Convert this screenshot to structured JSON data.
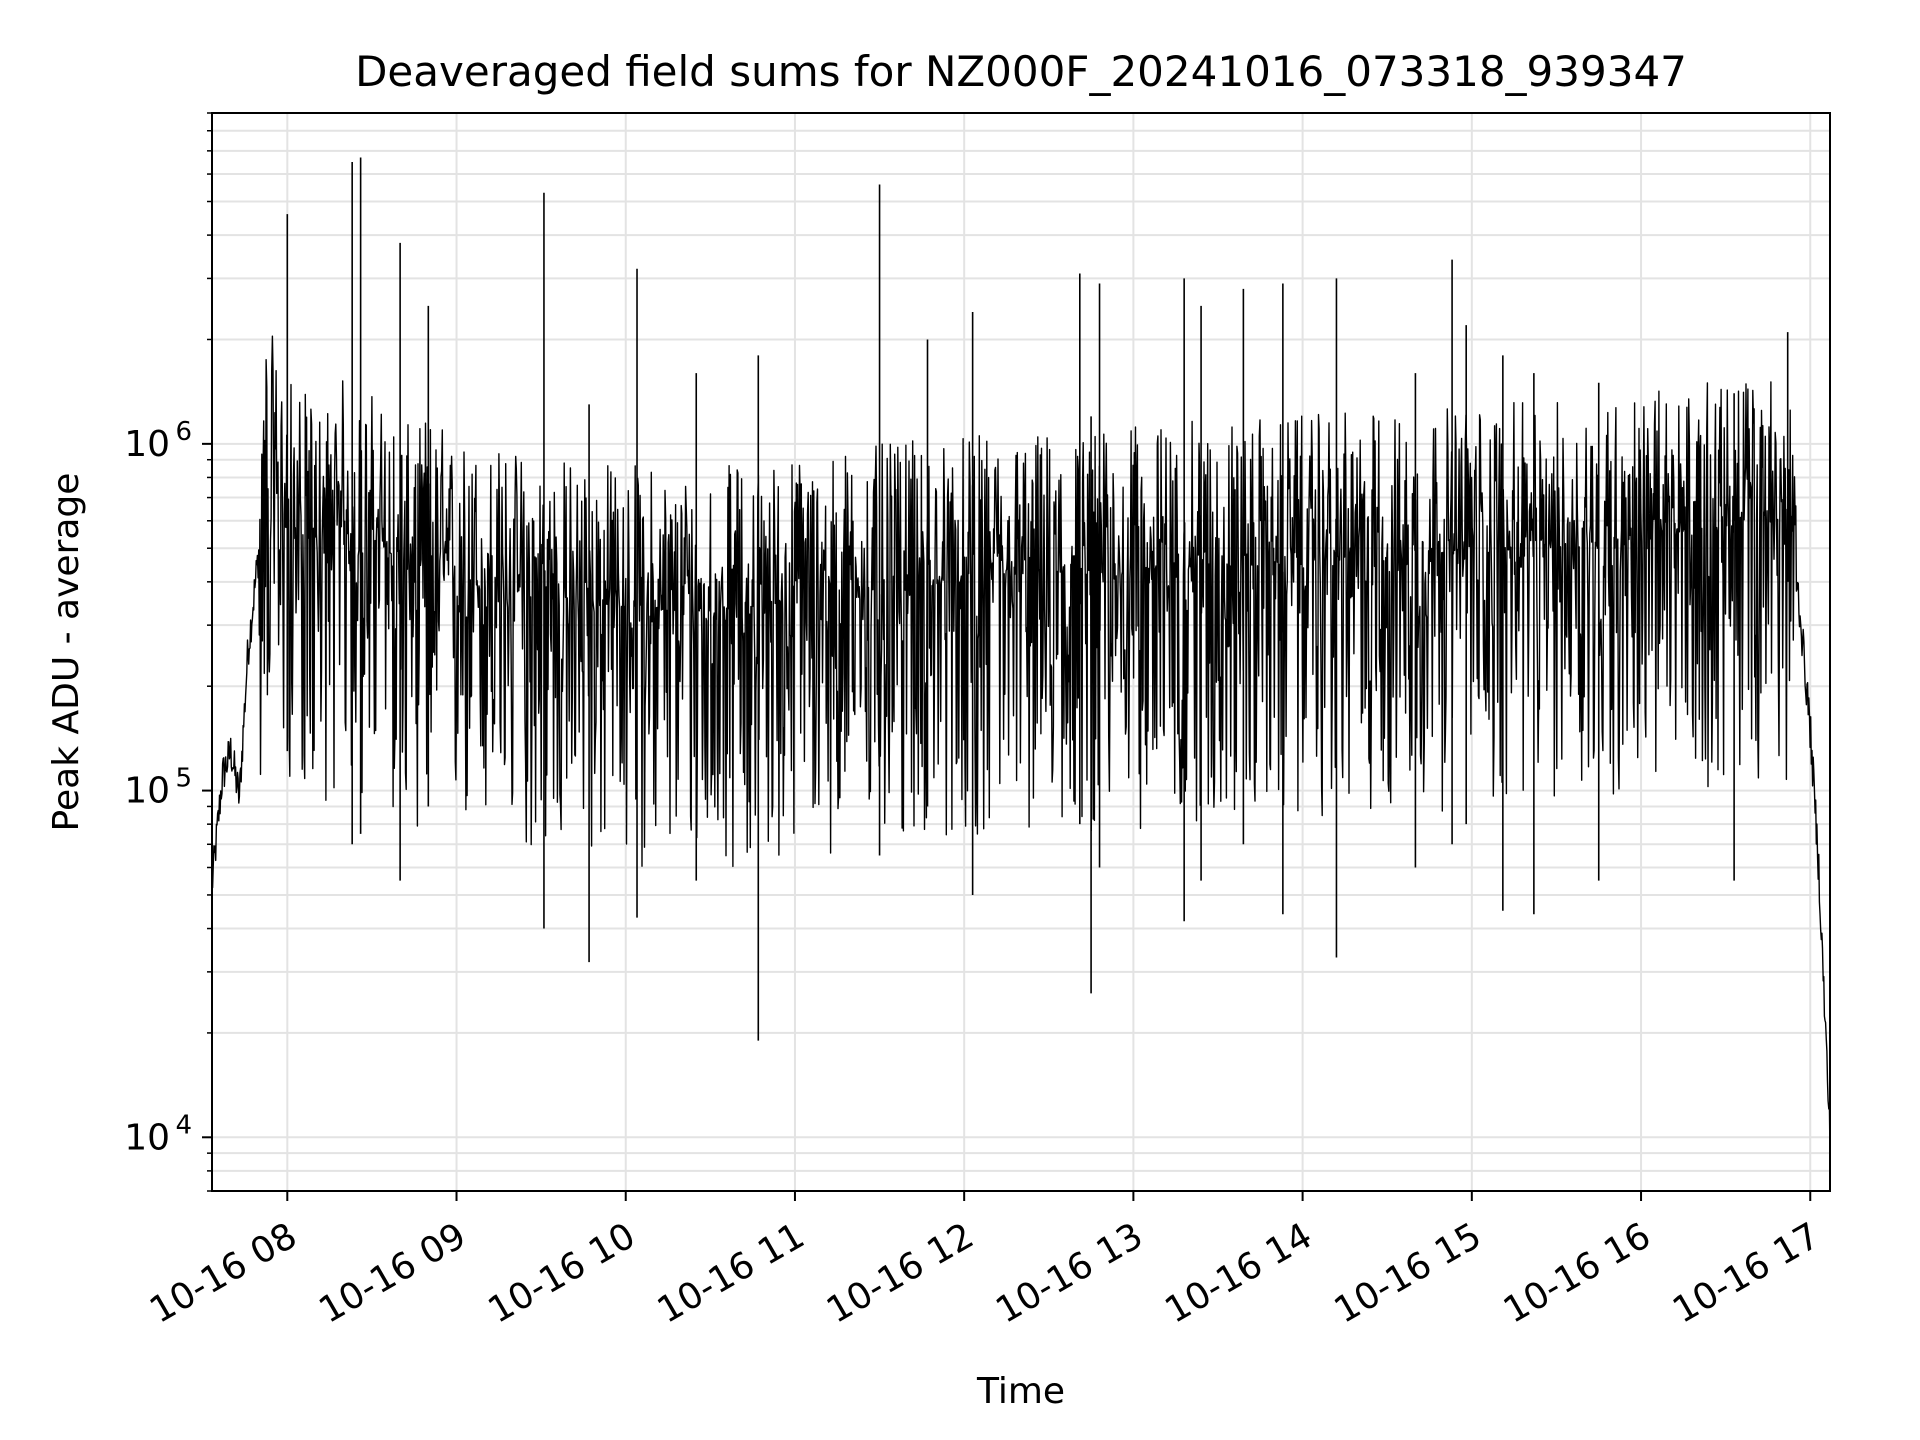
{
  "chart_data": {
    "type": "line",
    "title": "Deaveraged field sums for NZ000F_20241016_073318_939347",
    "xlabel": "Time",
    "ylabel": "Peak ADU - average",
    "yscale": "log",
    "ylim": [
      7000,
      9000000
    ],
    "xlim": [
      "2024-10-16 07:33:18",
      "2024-10-16 17:07:00"
    ],
    "grid": true,
    "line_color": "#000000",
    "x_ticks": [
      {
        "value": "2024-10-16 08:00",
        "label": "10-16 08"
      },
      {
        "value": "2024-10-16 09:00",
        "label": "10-16 09"
      },
      {
        "value": "2024-10-16 10:00",
        "label": "10-16 10"
      },
      {
        "value": "2024-10-16 11:00",
        "label": "10-16 11"
      },
      {
        "value": "2024-10-16 12:00",
        "label": "10-16 12"
      },
      {
        "value": "2024-10-16 13:00",
        "label": "10-16 13"
      },
      {
        "value": "2024-10-16 14:00",
        "label": "10-16 14"
      },
      {
        "value": "2024-10-16 15:00",
        "label": "10-16 15"
      },
      {
        "value": "2024-10-16 16:00",
        "label": "10-16 16"
      },
      {
        "value": "2024-10-16 17:00",
        "label": "10-16 17"
      }
    ],
    "y_ticks": [
      {
        "value": 10000,
        "base": "10",
        "exp": "4"
      },
      {
        "value": 100000,
        "base": "10",
        "exp": "5"
      },
      {
        "value": 1000000,
        "base": "10",
        "exp": "6"
      }
    ],
    "series": [
      {
        "x": [
          "2024-10-16 07:33",
          "2024-10-16 07:37",
          "2024-10-16 07:40",
          "2024-10-16 07:43",
          "2024-10-16 07:46",
          "2024-10-16 07:50",
          "2024-10-16 07:53",
          "2024-10-16 07:56",
          "2024-10-16 08:00",
          "2024-10-16 08:05",
          "2024-10-16 08:10",
          "2024-10-16 08:15",
          "2024-10-16 08:20",
          "2024-10-16 08:25",
          "2024-10-16 08:30",
          "2024-10-16 08:35",
          "2024-10-16 08:40",
          "2024-10-16 08:45",
          "2024-10-16 08:50",
          "2024-10-16 09:00",
          "2024-10-16 09:15",
          "2024-10-16 09:30",
          "2024-10-16 09:45",
          "2024-10-16 10:00",
          "2024-10-16 10:15",
          "2024-10-16 10:30",
          "2024-10-16 10:45",
          "2024-10-16 11:00",
          "2024-10-16 11:15",
          "2024-10-16 11:30",
          "2024-10-16 11:45",
          "2024-10-16 12:00",
          "2024-10-16 12:15",
          "2024-10-16 12:30",
          "2024-10-16 12:45",
          "2024-10-16 13:00",
          "2024-10-16 13:15",
          "2024-10-16 13:30",
          "2024-10-16 13:45",
          "2024-10-16 14:00",
          "2024-10-16 14:15",
          "2024-10-16 14:30",
          "2024-10-16 14:45",
          "2024-10-16 15:00",
          "2024-10-16 15:15",
          "2024-10-16 15:30",
          "2024-10-16 15:45",
          "2024-10-16 16:00",
          "2024-10-16 16:15",
          "2024-10-16 16:30",
          "2024-10-16 16:45",
          "2024-10-16 16:53",
          "2024-10-16 16:56",
          "2024-10-16 17:00",
          "2024-10-16 17:03",
          "2024-10-16 17:07"
        ],
        "y": [
          50000,
          110000,
          130000,
          95000,
          250000,
          500000,
          900000,
          700000,
          600000,
          550000,
          500000,
          520000,
          600000,
          480000,
          550000,
          500000,
          450000,
          420000,
          480000,
          400000,
          380000,
          360000,
          350000,
          340000,
          330000,
          330000,
          340000,
          360000,
          370000,
          380000,
          390000,
          400000,
          410000,
          420000,
          420000,
          430000,
          440000,
          450000,
          450000,
          460000,
          470000,
          480000,
          480000,
          500000,
          500000,
          510000,
          520000,
          540000,
          560000,
          580000,
          620000,
          600000,
          350000,
          150000,
          60000,
          10000
        ]
      }
    ],
    "spikes": [
      {
        "x": "2024-10-16 08:00",
        "peak": 4600000,
        "trough": 130000
      },
      {
        "x": "2024-10-16 08:23",
        "peak": 6500000,
        "trough": 70000
      },
      {
        "x": "2024-10-16 08:26",
        "peak": 6700000,
        "trough": 75000
      },
      {
        "x": "2024-10-16 08:40",
        "peak": 3800000,
        "trough": 55000
      },
      {
        "x": "2024-10-16 08:50",
        "peak": 2500000,
        "trough": 90000
      },
      {
        "x": "2024-10-16 09:31",
        "peak": 5300000,
        "trough": 40000
      },
      {
        "x": "2024-10-16 09:47",
        "peak": 1300000,
        "trough": 32000
      },
      {
        "x": "2024-10-16 10:04",
        "peak": 3200000,
        "trough": 43000
      },
      {
        "x": "2024-10-16 10:25",
        "peak": 1600000,
        "trough": 55000
      },
      {
        "x": "2024-10-16 10:47",
        "peak": 1800000,
        "trough": 19000
      },
      {
        "x": "2024-10-16 11:30",
        "peak": 5600000,
        "trough": 65000
      },
      {
        "x": "2024-10-16 11:47",
        "peak": 2000000,
        "trough": 90000
      },
      {
        "x": "2024-10-16 12:03",
        "peak": 2400000,
        "trough": 50000
      },
      {
        "x": "2024-10-16 12:41",
        "peak": 3100000,
        "trough": 80000
      },
      {
        "x": "2024-10-16 12:45",
        "peak": 1200000,
        "trough": 26000
      },
      {
        "x": "2024-10-16 12:48",
        "peak": 2900000,
        "trough": 60000
      },
      {
        "x": "2024-10-16 13:18",
        "peak": 3000000,
        "trough": 42000
      },
      {
        "x": "2024-10-16 13:24",
        "peak": 2500000,
        "trough": 55000
      },
      {
        "x": "2024-10-16 13:39",
        "peak": 2800000,
        "trough": 70000
      },
      {
        "x": "2024-10-16 13:53",
        "peak": 2900000,
        "trough": 44000
      },
      {
        "x": "2024-10-16 14:12",
        "peak": 3000000,
        "trough": 33000
      },
      {
        "x": "2024-10-16 14:40",
        "peak": 1600000,
        "trough": 60000
      },
      {
        "x": "2024-10-16 14:53",
        "peak": 3400000,
        "trough": 70000
      },
      {
        "x": "2024-10-16 14:58",
        "peak": 2200000,
        "trough": 80000
      },
      {
        "x": "2024-10-16 15:11",
        "peak": 1800000,
        "trough": 45000
      },
      {
        "x": "2024-10-16 15:22",
        "peak": 1600000,
        "trough": 44000
      },
      {
        "x": "2024-10-16 15:45",
        "peak": 1500000,
        "trough": 55000
      },
      {
        "x": "2024-10-16 16:33",
        "peak": 1400000,
        "trough": 55000
      },
      {
        "x": "2024-10-16 16:52",
        "peak": 2100000,
        "trough": 400000
      }
    ]
  }
}
